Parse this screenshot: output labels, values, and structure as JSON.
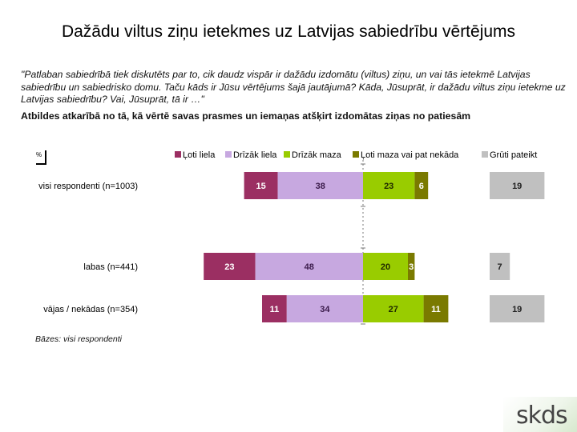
{
  "header": {
    "title": "Dažādu viltus ziņu ietekmes uz Latvijas sabiedrību vērtējums",
    "question": "\"Patlaban sabiedrībā tiek diskutēts par to, cik daudz vispār ir dažādu izdomātu (viltus) ziņu, un vai tās ietekmē Latvijas sabiedrību un sabiedrisko domu. Taču kāds ir Jūsu vērtējums šajā jautājumā? Kāda, Jūsuprāt, ir dažādu viltus ziņu ietekme uz Latvijas sabiedrību? Vai, Jūsuprāt, tā ir …\"",
    "subtitle": "Atbildes atkarībā no tā, kā vērtē savas prasmes un iemaņas atšķirt izdomātas ziņas no patiesām"
  },
  "chart_data": {
    "type": "bar",
    "unit_label": "%",
    "categories": [
      "visi respondenti (n=1003)",
      "labas (n=441)",
      "vājas / nekādas (n=354)"
    ],
    "series": [
      {
        "name": "Ļoti liela",
        "color": "#9b2f62",
        "values": [
          15,
          23,
          11
        ]
      },
      {
        "name": "Drīzāk liela",
        "color": "#c7a8e0",
        "values": [
          38,
          48,
          34
        ]
      },
      {
        "name": "Drīzāk maza",
        "color": "#99cc00",
        "values": [
          23,
          20,
          27
        ]
      },
      {
        "name": "Ļoti maza vai pat nekāda",
        "color": "#7a7a00",
        "values": [
          6,
          3,
          11
        ]
      },
      {
        "name": "Grūti pateikt",
        "color": "#c0c0c0",
        "values": [
          19,
          7,
          19
        ]
      }
    ]
  },
  "footer": {
    "base": "Bāzes: visi respondenti"
  },
  "logo": {
    "text": "skds"
  }
}
